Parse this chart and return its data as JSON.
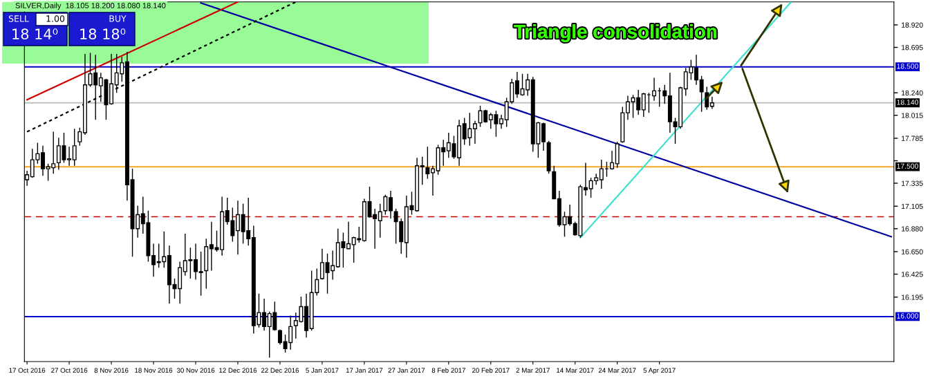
{
  "chart_data": {
    "type": "candlestick",
    "title": "SILVER,Daily  18.105 18.200 18.080 18.140",
    "annotations": [
      "Triangle consolidation",
      "SELL",
      "1.00",
      "BUY",
      "18 14⁰",
      "18 18⁰"
    ],
    "categories": [
      "17 Oct 2016",
      null,
      null,
      null,
      null,
      null,
      null,
      null,
      "27 Oct 2016",
      null,
      null,
      null,
      null,
      null,
      null,
      null,
      "8 Nov 2016",
      null,
      null,
      null,
      null,
      null,
      null,
      null,
      "18 Nov 2016",
      null,
      null,
      null,
      null,
      null,
      null,
      null,
      "30 Nov 2016",
      null,
      null,
      null,
      null,
      null,
      null,
      null,
      "12 Dec 2016",
      null,
      null,
      null,
      null,
      null,
      null,
      null,
      "22 Dec 2016",
      null,
      null,
      null,
      null,
      null,
      null,
      null,
      "5 Jan 2017",
      null,
      null,
      null,
      null,
      null,
      null,
      null,
      "17 Jan 2017",
      null,
      null,
      null,
      null,
      null,
      null,
      null,
      "27 Jan 2017",
      null,
      null,
      null,
      null,
      null,
      null,
      null,
      "8 Feb 2017",
      null,
      null,
      null,
      null,
      null,
      null,
      null,
      "20 Feb 2017",
      null,
      null,
      null,
      null,
      null,
      null,
      null,
      "2 Mar 2017",
      null,
      null,
      null,
      null,
      null,
      null,
      null,
      "14 Mar 2017",
      null,
      null,
      null,
      null,
      null,
      null,
      null,
      "24 Mar 2017",
      null,
      null,
      null,
      null,
      null,
      null,
      null,
      "5 Apr 2017",
      null,
      null,
      null,
      null,
      null,
      null,
      null,
      null,
      null,
      null,
      null,
      null,
      null,
      null,
      null,
      null,
      null,
      null,
      null,
      null,
      null,
      null,
      null,
      null,
      null,
      null,
      null,
      null,
      null,
      null,
      null,
      null,
      null,
      null,
      null,
      null,
      null,
      null,
      null,
      null,
      null,
      null,
      null,
      null
    ],
    "ohlc": [
      [
        17.37,
        17.46,
        17.31,
        17.42
      ],
      [
        17.4,
        17.68,
        17.39,
        17.57
      ],
      [
        17.57,
        17.74,
        17.53,
        17.63
      ],
      [
        17.64,
        17.71,
        17.41,
        17.48
      ],
      [
        17.48,
        17.53,
        17.36,
        17.5
      ],
      [
        17.49,
        17.85,
        17.43,
        17.53
      ],
      [
        17.54,
        17.79,
        17.47,
        17.71
      ],
      [
        17.71,
        17.84,
        17.54,
        17.57
      ],
      [
        17.57,
        17.7,
        17.51,
        17.58
      ],
      [
        17.57,
        17.88,
        17.51,
        17.71
      ],
      [
        17.75,
        17.89,
        17.71,
        17.85
      ],
      [
        17.84,
        18.63,
        17.82,
        18.32
      ],
      [
        18.32,
        18.64,
        18.3,
        18.43
      ],
      [
        18.44,
        18.62,
        17.97,
        18.32
      ],
      [
        18.31,
        18.44,
        18.15,
        18.39
      ],
      [
        18.37,
        18.38,
        17.97,
        18.12
      ],
      [
        18.13,
        18.63,
        18.12,
        18.33
      ],
      [
        18.32,
        18.63,
        18.24,
        18.44
      ],
      [
        18.43,
        18.6,
        18.35,
        18.54
      ],
      [
        18.55,
        18.65,
        17.16,
        17.32
      ],
      [
        17.37,
        17.48,
        16.6,
        16.88
      ],
      [
        16.88,
        17.11,
        16.79,
        17.02
      ],
      [
        17.03,
        17.2,
        16.83,
        16.93
      ],
      [
        16.94,
        17.06,
        16.55,
        16.61
      ],
      [
        16.61,
        16.73,
        16.4,
        16.52
      ],
      [
        16.54,
        16.73,
        16.49,
        16.55
      ],
      [
        16.55,
        16.85,
        16.49,
        16.6
      ],
      [
        16.61,
        16.71,
        16.13,
        16.32
      ],
      [
        16.32,
        16.38,
        16.18,
        16.28
      ],
      [
        16.28,
        16.55,
        16.13,
        16.49
      ],
      [
        16.45,
        16.83,
        16.41,
        16.56
      ],
      [
        16.56,
        16.69,
        16.38,
        16.57
      ],
      [
        16.57,
        16.73,
        16.37,
        16.45
      ],
      [
        16.45,
        16.65,
        16.21,
        16.44
      ],
      [
        16.46,
        16.78,
        16.28,
        16.7
      ],
      [
        16.72,
        16.95,
        16.46,
        16.68
      ],
      [
        16.69,
        16.86,
        16.65,
        16.67
      ],
      [
        16.67,
        17.2,
        16.61,
        17.05
      ],
      [
        17.06,
        17.19,
        16.92,
        16.95
      ],
      [
        16.96,
        17.09,
        16.75,
        16.81
      ],
      [
        16.86,
        17.16,
        16.62,
        17.02
      ],
      [
        17.02,
        17.13,
        16.73,
        16.85
      ],
      [
        16.86,
        17.19,
        16.71,
        16.78
      ],
      [
        16.79,
        16.91,
        15.83,
        15.91
      ],
      [
        15.92,
        16.23,
        15.89,
        16.04
      ],
      [
        16.04,
        16.18,
        15.86,
        15.9
      ],
      [
        15.9,
        16.05,
        15.59,
        16.03
      ],
      [
        16.04,
        16.15,
        15.86,
        15.87
      ],
      [
        15.86,
        15.87,
        15.72,
        15.74
      ],
      [
        15.75,
        15.82,
        15.64,
        15.68
      ],
      [
        15.74,
        16.01,
        15.67,
        15.9
      ],
      [
        15.91,
        16.04,
        15.78,
        15.96
      ],
      [
        15.95,
        16.2,
        15.94,
        16.1
      ],
      [
        16.1,
        16.23,
        15.79,
        15.86
      ],
      [
        15.88,
        16.46,
        15.86,
        16.24
      ],
      [
        16.24,
        16.48,
        16.21,
        16.37
      ],
      [
        16.38,
        16.68,
        16.37,
        16.54
      ],
      [
        16.54,
        16.63,
        16.23,
        16.44
      ],
      [
        16.46,
        16.66,
        16.37,
        16.51
      ],
      [
        16.5,
        16.88,
        16.49,
        16.74
      ],
      [
        16.75,
        16.84,
        16.49,
        16.69
      ],
      [
        16.68,
        16.95,
        16.68,
        16.73
      ],
      [
        16.72,
        16.8,
        16.54,
        16.79
      ],
      [
        16.77,
        16.9,
        16.74,
        16.78
      ],
      [
        16.76,
        17.18,
        16.75,
        17.15
      ],
      [
        17.15,
        17.3,
        16.99,
        17.0
      ],
      [
        17.02,
        17.08,
        16.68,
        16.98
      ],
      [
        16.96,
        17.13,
        16.79,
        17.05
      ],
      [
        17.06,
        17.22,
        17.02,
        17.2
      ],
      [
        17.19,
        17.26,
        16.98,
        17.06
      ],
      [
        17.05,
        17.08,
        16.73,
        16.95
      ],
      [
        16.95,
        16.98,
        16.63,
        16.75
      ],
      [
        16.74,
        17.21,
        16.59,
        17.1
      ],
      [
        17.11,
        17.25,
        17.02,
        17.07
      ],
      [
        17.06,
        17.59,
        17.05,
        17.51
      ],
      [
        17.51,
        17.6,
        17.32,
        17.5
      ],
      [
        17.49,
        17.7,
        17.38,
        17.43
      ],
      [
        17.44,
        17.51,
        17.21,
        17.48
      ],
      [
        17.46,
        17.72,
        17.42,
        17.69
      ],
      [
        17.69,
        17.77,
        17.51,
        17.65
      ],
      [
        17.66,
        17.84,
        17.59,
        17.74
      ],
      [
        17.73,
        17.81,
        17.58,
        17.6
      ],
      [
        17.59,
        17.97,
        17.51,
        17.91
      ],
      [
        17.93,
        17.99,
        17.72,
        17.78
      ],
      [
        17.79,
        18.04,
        17.71,
        17.88
      ],
      [
        17.88,
        17.96,
        17.73,
        17.93
      ],
      [
        17.94,
        18.11,
        17.9,
        18.06
      ],
      [
        18.06,
        18.07,
        17.94,
        17.95
      ],
      [
        17.97,
        18.04,
        17.88,
        18.02
      ],
      [
        18.02,
        18.06,
        17.8,
        17.93
      ],
      [
        17.93,
        18.02,
        17.88,
        17.98
      ],
      [
        17.97,
        18.19,
        17.9,
        18.15
      ],
      [
        18.15,
        18.38,
        18.13,
        18.34
      ],
      [
        18.36,
        18.45,
        18.19,
        18.23
      ],
      [
        18.22,
        18.43,
        18.21,
        18.28
      ],
      [
        18.27,
        18.43,
        18.21,
        18.37
      ],
      [
        18.37,
        18.4,
        17.65,
        17.73
      ],
      [
        17.73,
        17.95,
        17.59,
        17.94
      ],
      [
        17.93,
        17.94,
        17.66,
        17.75
      ],
      [
        17.74,
        17.76,
        17.43,
        17.46
      ],
      [
        17.45,
        17.51,
        17.18,
        17.18
      ],
      [
        17.18,
        17.26,
        16.9,
        16.92
      ],
      [
        16.92,
        17.05,
        16.8,
        17.0
      ],
      [
        17.0,
        17.12,
        16.91,
        16.93
      ],
      [
        16.93,
        16.95,
        16.81,
        16.82
      ],
      [
        16.81,
        17.32,
        16.79,
        17.3
      ],
      [
        17.29,
        17.54,
        17.21,
        17.27
      ],
      [
        17.28,
        17.39,
        17.19,
        17.36
      ],
      [
        17.36,
        17.43,
        17.32,
        17.39
      ],
      [
        17.37,
        17.57,
        17.28,
        17.48
      ],
      [
        17.48,
        17.55,
        17.4,
        17.48
      ],
      [
        17.48,
        17.66,
        17.47,
        17.54
      ],
      [
        17.53,
        17.75,
        17.49,
        17.73
      ],
      [
        17.75,
        18.1,
        17.74,
        18.04
      ],
      [
        18.04,
        18.21,
        17.97,
        18.15
      ],
      [
        18.15,
        18.22,
        17.99,
        18.19
      ],
      [
        18.19,
        18.27,
        18.02,
        18.07
      ],
      [
        18.07,
        18.24,
        18.0,
        18.23
      ],
      [
        18.22,
        18.24,
        18.04,
        18.22
      ],
      [
        18.21,
        18.39,
        18.16,
        18.26
      ],
      [
        18.26,
        18.29,
        18.1,
        18.26
      ],
      [
        18.26,
        18.32,
        18.13,
        18.21
      ],
      [
        18.21,
        18.44,
        17.84,
        17.95
      ],
      [
        17.95,
        17.99,
        17.73,
        17.9
      ],
      [
        17.9,
        18.3,
        17.88,
        18.29
      ],
      [
        18.28,
        18.49,
        18.21,
        18.45
      ],
      [
        18.44,
        18.57,
        18.37,
        18.5
      ],
      [
        18.49,
        18.62,
        18.32,
        18.37
      ],
      [
        18.37,
        18.41,
        18.05,
        18.25
      ],
      [
        18.24,
        18.3,
        18.07,
        18.1
      ],
      [
        18.105,
        18.2,
        18.08,
        18.14
      ],
      null,
      null,
      null,
      null,
      null,
      null,
      null,
      null,
      null,
      null,
      null,
      null,
      null,
      null,
      null,
      null,
      null,
      null,
      null,
      null,
      null,
      null,
      null,
      null,
      null,
      null,
      null,
      null,
      null,
      null,
      null,
      null,
      null,
      null
    ],
    "series": [
      {
        "type": "line",
        "color": "#0000a0",
        "values": [
          null,
          null,
          null,
          null,
          null,
          null,
          null,
          null,
          null,
          null,
          null,
          null,
          null,
          null,
          null,
          null,
          null,
          null,
          null,
          null,
          null,
          null,
          null,
          null,
          null,
          null,
          null,
          null,
          null,
          null,
          null,
          null,
          null,
          19.14,
          null,
          null,
          null,
          null,
          null,
          null,
          null,
          null,
          null,
          null,
          null,
          null,
          null,
          null,
          null,
          null,
          null,
          null,
          null,
          null,
          null,
          null,
          null,
          null,
          null,
          null,
          null,
          null,
          null,
          null,
          null,
          null,
          null,
          null,
          null,
          null,
          null,
          null,
          null,
          null,
          null,
          null,
          null,
          null,
          null,
          null,
          null,
          null,
          null,
          null,
          null,
          null,
          null,
          null,
          null,
          null,
          null,
          null,
          null,
          null,
          null,
          null,
          null,
          null,
          null,
          null,
          null,
          null,
          null,
          null,
          null,
          null,
          null,
          null,
          null,
          null,
          null,
          null,
          null,
          null,
          null,
          null,
          null,
          null,
          null,
          null,
          null,
          null,
          null,
          null,
          null,
          null,
          null,
          null,
          null,
          null,
          null,
          null,
          null,
          null,
          null,
          null,
          null,
          null,
          null,
          null,
          null,
          null,
          null,
          null,
          null,
          null,
          null,
          null,
          null,
          null,
          null,
          null,
          null,
          null,
          null,
          null,
          null,
          null,
          null,
          null,
          null,
          null,
          null,
          null,
          16.8
        ]
      },
      {
        "type": "line",
        "color": "#40e0d0",
        "values": [
          null,
          null,
          null,
          null,
          null,
          null,
          null,
          null,
          null,
          null,
          null,
          null,
          null,
          null,
          null,
          null,
          null,
          null,
          null,
          null,
          null,
          null,
          null,
          null,
          null,
          null,
          null,
          null,
          null,
          null,
          null,
          null,
          null,
          null,
          null,
          null,
          null,
          null,
          null,
          null,
          null,
          null,
          null,
          null,
          null,
          null,
          null,
          null,
          null,
          null,
          null,
          null,
          null,
          null,
          null,
          null,
          null,
          null,
          null,
          null,
          null,
          null,
          null,
          null,
          null,
          null,
          null,
          null,
          null,
          null,
          null,
          null,
          null,
          null,
          null,
          null,
          null,
          null,
          null,
          null,
          null,
          null,
          null,
          null,
          null,
          null,
          null,
          null,
          null,
          null,
          null,
          null,
          null,
          null,
          null,
          null,
          null,
          null,
          null,
          null,
          null,
          null,
          null,
          null,
          null,
          16.79,
          null,
          null,
          null,
          null,
          null,
          null,
          null,
          null,
          null,
          null,
          null,
          null,
          null,
          null,
          null,
          null,
          null,
          null,
          null,
          null,
          null,
          null,
          null,
          null,
          null,
          null,
          null,
          null,
          null,
          null,
          null,
          null,
          null,
          null,
          null,
          null,
          null,
          null,
          null,
          19.15,
          null,
          null,
          null,
          null,
          null,
          null,
          null,
          null,
          null,
          null,
          null,
          null,
          null,
          null,
          null,
          null,
          null,
          null,
          null
        ]
      },
      {
        "type": "line",
        "color": "#cc0000",
        "values": [
          18.17,
          null,
          null,
          null,
          null,
          null,
          null,
          null,
          null,
          null,
          null,
          null,
          null,
          null,
          null,
          null,
          null,
          null,
          null,
          null,
          null,
          null,
          null,
          null,
          null,
          null,
          null,
          null,
          null,
          null,
          null,
          null,
          null,
          null,
          null,
          null,
          null,
          null,
          null,
          null,
          19.15,
          null,
          null,
          null,
          null,
          null,
          null,
          null,
          null,
          null,
          null,
          null,
          null,
          null,
          null,
          null,
          null,
          null,
          null,
          null,
          null,
          null,
          null,
          null,
          null,
          null,
          null,
          null,
          null,
          null,
          null,
          null,
          null,
          null,
          null,
          null,
          null,
          null,
          null,
          null,
          null,
          null,
          null,
          null,
          null,
          null,
          null,
          null,
          null,
          null,
          null,
          null,
          null,
          null,
          null,
          null,
          null,
          null,
          null,
          null,
          null,
          null,
          null,
          null,
          null,
          null,
          null,
          null,
          null,
          null,
          null,
          null,
          null,
          null,
          null,
          null,
          null,
          null,
          null,
          null,
          null,
          null,
          null,
          null,
          null,
          null,
          null,
          null,
          null,
          null,
          null,
          null,
          null,
          null,
          null,
          null,
          null,
          null,
          null,
          null,
          null,
          null,
          null,
          null,
          null,
          null,
          null,
          null,
          null,
          null,
          null,
          null,
          null,
          null,
          null,
          null,
          null,
          null,
          null,
          null,
          null,
          null,
          null,
          null,
          null
        ]
      },
      {
        "type": "line",
        "color": "#000000",
        "line_style": "dotted",
        "values": [
          17.85,
          null,
          null,
          null,
          null,
          null,
          null,
          null,
          null,
          null,
          null,
          null,
          null,
          null,
          null,
          null,
          null,
          null,
          null,
          null,
          null,
          null,
          null,
          null,
          null,
          null,
          null,
          null,
          null,
          null,
          null,
          null,
          null,
          null,
          null,
          null,
          null,
          null,
          null,
          null,
          null,
          null,
          null,
          null,
          null,
          null,
          null,
          null,
          null,
          null,
          null,
          19.15,
          null,
          null,
          null,
          null,
          null,
          null,
          null,
          null,
          null,
          null,
          null,
          null,
          null,
          null,
          null,
          null,
          null,
          null,
          null,
          null,
          null,
          null,
          null,
          null,
          null,
          null,
          null,
          null,
          null,
          null,
          null,
          null,
          null,
          null,
          null,
          null,
          null,
          null,
          null,
          null,
          null,
          null,
          null,
          null,
          null,
          null,
          null,
          null,
          null,
          null,
          null,
          null,
          null,
          null,
          null,
          null,
          null,
          null,
          null,
          null,
          null,
          null,
          null,
          null,
          null,
          null,
          null,
          null,
          null,
          null,
          null,
          null,
          null,
          null,
          null,
          null,
          null,
          null,
          null,
          null,
          null,
          null,
          null,
          null,
          null,
          null,
          null,
          null,
          null,
          null,
          null,
          null,
          null,
          null,
          null,
          null,
          null,
          null,
          null,
          null,
          null,
          null,
          null,
          null,
          null,
          null,
          null,
          null,
          null,
          null,
          null,
          null,
          null
        ]
      }
    ],
    "ref_lines": [
      {
        "axis": "y",
        "value": 18.5,
        "label": "18.500",
        "color": "#0000cc"
      },
      {
        "axis": "y",
        "value": 18.14,
        "label": "18.140",
        "color": "#c0c0c0"
      },
      {
        "axis": "y",
        "value": 17.5,
        "label": "17.500",
        "color": "#f5a623"
      },
      {
        "axis": "y",
        "value": 17.0,
        "color": "#cc0000",
        "line_style": "dashed"
      },
      {
        "axis": "y",
        "value": 16.0,
        "label": "16.000",
        "color": "#0000cc"
      }
    ],
    "ylim": [
      15.55,
      19.15
    ],
    "yticks": [
      {
        "value": 18.92,
        "label": "18.920"
      },
      {
        "value": 18.695,
        "label": "18.695"
      },
      {
        "value": 18.24,
        "label": "18.240"
      },
      {
        "value": 18.015,
        "label": "18.015"
      },
      {
        "value": 17.785,
        "label": "17.785"
      },
      {
        "value": 17.56,
        "label": null
      },
      {
        "value": 17.335,
        "label": "17.335"
      },
      {
        "value": 17.105,
        "label": "17.105"
      },
      {
        "value": 16.88,
        "label": "16.880"
      },
      {
        "value": 16.65,
        "label": "16.650"
      },
      {
        "value": 16.425,
        "label": "16.425"
      },
      {
        "value": 16.195,
        "label": "16.195"
      }
    ]
  }
}
